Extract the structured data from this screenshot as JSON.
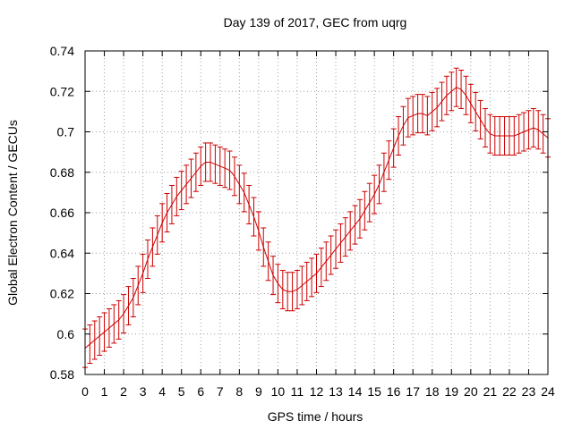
{
  "chart_data": {
    "type": "line",
    "title": "Day 139 of 2017, GEC from uqrg",
    "xlabel": "GPS time / hours",
    "ylabel": "Global Electron Content / GECUs",
    "xlim": [
      0,
      24
    ],
    "ylim": [
      0.58,
      0.74
    ],
    "x_ticks": [
      0,
      1,
      2,
      3,
      4,
      5,
      6,
      7,
      8,
      9,
      10,
      11,
      12,
      13,
      14,
      15,
      16,
      17,
      18,
      19,
      20,
      21,
      22,
      23,
      24
    ],
    "y_ticks": [
      0.58,
      0.6,
      0.62,
      0.64,
      0.66,
      0.68,
      0.7,
      0.72,
      0.74
    ],
    "grid": true,
    "legend": "none",
    "series_color": "#cc0000",
    "error_bar_half_width": 0.0095,
    "series": [
      {
        "x": [
          0,
          0.25,
          0.5,
          0.75,
          1,
          1.25,
          1.5,
          1.75,
          2,
          2.25,
          2.5,
          2.75,
          3,
          3.25,
          3.5,
          3.75,
          4,
          4.25,
          4.5,
          4.75,
          5,
          5.25,
          5.5,
          5.75,
          6,
          6.25,
          6.5,
          6.75,
          7,
          7.25,
          7.5,
          7.75,
          8,
          8.25,
          8.5,
          8.75,
          9,
          9.25,
          9.5,
          9.75,
          10,
          10.25,
          10.5,
          10.75,
          11,
          11.25,
          11.5,
          11.75,
          12,
          12.25,
          12.5,
          12.75,
          13,
          13.25,
          13.5,
          13.75,
          14,
          14.25,
          14.5,
          14.75,
          15,
          15.25,
          15.5,
          15.75,
          16,
          16.25,
          16.5,
          16.75,
          17,
          17.25,
          17.5,
          17.75,
          18,
          18.25,
          18.5,
          18.75,
          19,
          19.25,
          19.5,
          19.75,
          20,
          20.25,
          20.5,
          20.75,
          21,
          21.25,
          21.5,
          21.75,
          22,
          22.25,
          22.5,
          22.75,
          23,
          23.25,
          23.5,
          23.75,
          24
        ],
        "y": [
          0.593,
          0.595,
          0.597,
          0.599,
          0.601,
          0.603,
          0.605,
          0.607,
          0.61,
          0.614,
          0.618,
          0.624,
          0.63,
          0.637,
          0.643,
          0.649,
          0.655,
          0.66,
          0.664,
          0.668,
          0.671,
          0.674,
          0.677,
          0.68,
          0.683,
          0.685,
          0.685,
          0.684,
          0.683,
          0.682,
          0.681,
          0.678,
          0.674,
          0.67,
          0.664,
          0.658,
          0.651,
          0.643,
          0.636,
          0.629,
          0.625,
          0.622,
          0.621,
          0.621,
          0.622,
          0.624,
          0.626,
          0.628,
          0.63,
          0.633,
          0.636,
          0.639,
          0.642,
          0.645,
          0.648,
          0.651,
          0.654,
          0.657,
          0.661,
          0.665,
          0.669,
          0.674,
          0.68,
          0.686,
          0.692,
          0.698,
          0.703,
          0.707,
          0.708,
          0.709,
          0.709,
          0.708,
          0.71,
          0.712,
          0.715,
          0.718,
          0.72,
          0.722,
          0.721,
          0.718,
          0.714,
          0.71,
          0.706,
          0.702,
          0.699,
          0.698,
          0.698,
          0.698,
          0.698,
          0.698,
          0.699,
          0.7,
          0.701,
          0.702,
          0.701,
          0.699,
          0.697
        ]
      }
    ]
  }
}
